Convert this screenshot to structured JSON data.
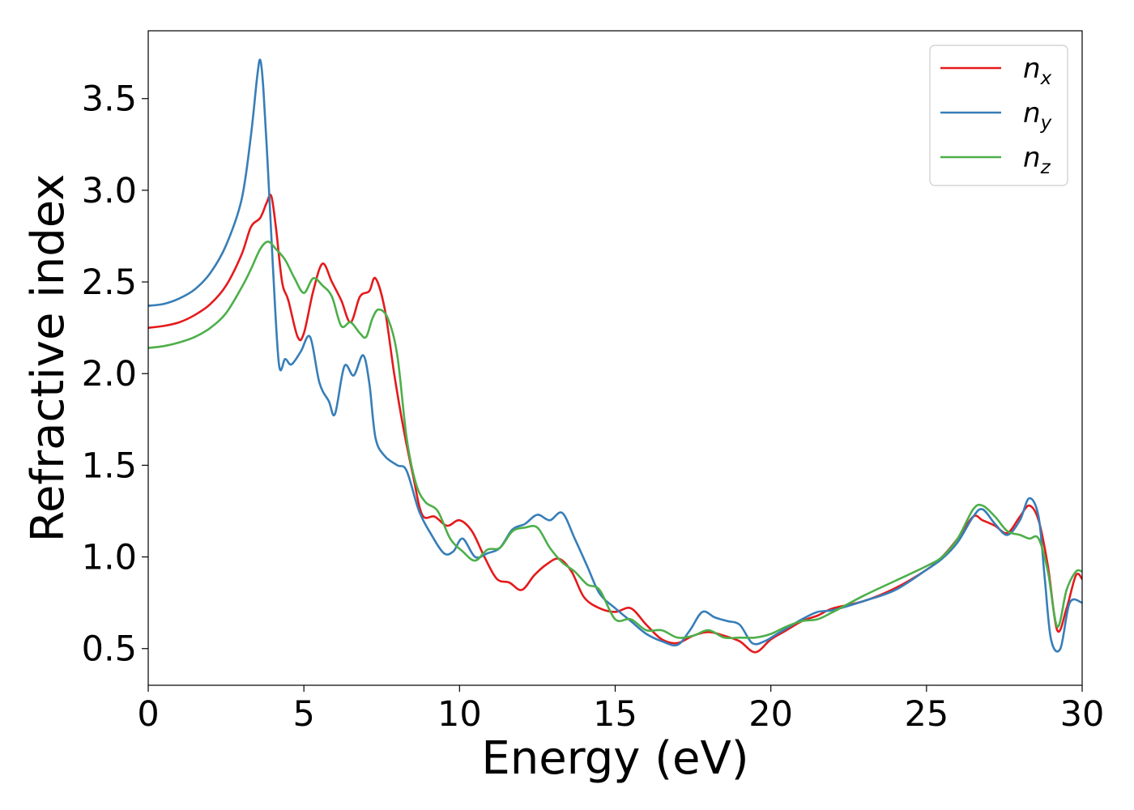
{
  "chart_data": {
    "type": "line",
    "title": "",
    "xlabel": "Energy (eV)",
    "ylabel": "Refractive index",
    "xlim": [
      0,
      30
    ],
    "ylim": [
      0.3,
      3.87
    ],
    "xticks": [
      0,
      5,
      10,
      15,
      20,
      25,
      30
    ],
    "xtick_labels": [
      "0",
      "5",
      "10",
      "15",
      "20",
      "25",
      "30"
    ],
    "yticks": [
      0.5,
      1.0,
      1.5,
      2.0,
      2.5,
      3.0,
      3.5
    ],
    "ytick_labels": [
      "0.5",
      "1.0",
      "1.5",
      "2.0",
      "2.5",
      "3.0",
      "3.5"
    ],
    "grid": false,
    "legend_position": "top-right",
    "series": [
      {
        "name": "n_x",
        "label_base": "n",
        "label_sub": "x",
        "color": "#e41a1c",
        "x": [
          0,
          0.5,
          1,
          1.5,
          2,
          2.5,
          3,
          3.3,
          3.6,
          3.8,
          3.95,
          4.1,
          4.3,
          4.5,
          4.8,
          5.0,
          5.3,
          5.6,
          5.9,
          6.2,
          6.5,
          6.8,
          7.1,
          7.3,
          7.6,
          7.9,
          8.2,
          8.5,
          8.8,
          9.2,
          9.6,
          10.0,
          10.4,
          10.8,
          11.2,
          11.6,
          12.0,
          12.4,
          12.8,
          13.2,
          13.6,
          14.0,
          14.5,
          15.0,
          15.5,
          16.0,
          16.5,
          17.0,
          17.5,
          18.0,
          18.5,
          19.0,
          19.5,
          20.0,
          20.5,
          21.0,
          21.5,
          22.0,
          23.0,
          24.0,
          25.0,
          25.5,
          26.0,
          26.5,
          26.8,
          27.2,
          27.6,
          28.0,
          28.3,
          28.6,
          28.9,
          29.2,
          29.5,
          29.8,
          30.0
        ],
        "y": [
          2.25,
          2.26,
          2.28,
          2.32,
          2.38,
          2.48,
          2.65,
          2.8,
          2.85,
          2.93,
          2.97,
          2.8,
          2.5,
          2.4,
          2.2,
          2.22,
          2.45,
          2.6,
          2.5,
          2.4,
          2.28,
          2.42,
          2.45,
          2.52,
          2.35,
          2.0,
          1.7,
          1.45,
          1.23,
          1.22,
          1.17,
          1.2,
          1.14,
          1.0,
          0.88,
          0.86,
          0.82,
          0.9,
          0.96,
          0.99,
          0.92,
          0.78,
          0.72,
          0.7,
          0.72,
          0.63,
          0.55,
          0.53,
          0.57,
          0.59,
          0.57,
          0.54,
          0.48,
          0.55,
          0.6,
          0.65,
          0.68,
          0.72,
          0.76,
          0.83,
          0.93,
          1.0,
          1.1,
          1.22,
          1.2,
          1.17,
          1.13,
          1.22,
          1.28,
          1.2,
          0.95,
          0.6,
          0.72,
          0.9,
          0.88
        ]
      },
      {
        "name": "n_y",
        "label_base": "n",
        "label_sub": "y",
        "color": "#377eb8",
        "x": [
          0,
          0.5,
          1,
          1.5,
          2,
          2.5,
          3,
          3.3,
          3.5,
          3.6,
          3.7,
          3.85,
          4.0,
          4.2,
          4.4,
          4.6,
          4.9,
          5.2,
          5.5,
          5.8,
          6.0,
          6.3,
          6.6,
          6.9,
          7.1,
          7.3,
          7.6,
          8.0,
          8.3,
          8.7,
          9.1,
          9.5,
          9.8,
          10.1,
          10.5,
          10.9,
          11.3,
          11.7,
          12.1,
          12.5,
          12.9,
          13.3,
          13.7,
          14.1,
          14.5,
          15.0,
          15.5,
          16.0,
          16.5,
          17.0,
          17.4,
          17.8,
          18.2,
          18.6,
          19.0,
          19.4,
          19.8,
          20.2,
          20.6,
          21.0,
          21.5,
          22.0,
          23.0,
          24.0,
          25.0,
          25.5,
          26.0,
          26.5,
          26.8,
          27.2,
          27.6,
          28.0,
          28.3,
          28.6,
          28.8,
          29.0,
          29.3,
          29.6,
          30.0
        ],
        "y": [
          2.37,
          2.38,
          2.41,
          2.46,
          2.55,
          2.7,
          2.95,
          3.3,
          3.62,
          3.71,
          3.55,
          3.1,
          2.6,
          2.05,
          2.08,
          2.05,
          2.12,
          2.2,
          1.95,
          1.85,
          1.78,
          2.04,
          1.99,
          2.1,
          1.95,
          1.65,
          1.55,
          1.5,
          1.47,
          1.25,
          1.12,
          1.02,
          1.03,
          1.1,
          1.0,
          1.02,
          1.05,
          1.15,
          1.18,
          1.23,
          1.2,
          1.24,
          1.1,
          0.95,
          0.8,
          0.72,
          0.65,
          0.58,
          0.54,
          0.52,
          0.6,
          0.7,
          0.67,
          0.65,
          0.63,
          0.53,
          0.54,
          0.58,
          0.62,
          0.66,
          0.7,
          0.71,
          0.76,
          0.82,
          0.93,
          0.99,
          1.08,
          1.22,
          1.26,
          1.18,
          1.12,
          1.2,
          1.32,
          1.22,
          0.88,
          0.55,
          0.5,
          0.75,
          0.75
        ]
      },
      {
        "name": "n_z",
        "label_base": "n",
        "label_sub": "z",
        "color": "#4daf4a",
        "x": [
          0,
          0.5,
          1,
          1.5,
          2,
          2.5,
          3,
          3.3,
          3.6,
          3.85,
          4.1,
          4.4,
          4.7,
          5.0,
          5.3,
          5.6,
          5.9,
          6.2,
          6.5,
          6.8,
          7.0,
          7.2,
          7.4,
          7.7,
          8.0,
          8.3,
          8.6,
          8.9,
          9.3,
          9.7,
          10.1,
          10.5,
          10.9,
          11.3,
          11.7,
          12.1,
          12.5,
          12.9,
          13.3,
          13.7,
          14.1,
          14.5,
          15.0,
          15.5,
          16.0,
          16.5,
          17.0,
          17.5,
          18.0,
          18.5,
          19.0,
          19.5,
          20.0,
          20.5,
          21.0,
          21.5,
          22.0,
          23.0,
          24.0,
          25.0,
          25.5,
          26.0,
          26.5,
          26.8,
          27.2,
          27.6,
          28.0,
          28.3,
          28.6,
          28.9,
          29.2,
          29.5,
          29.8,
          30.0
        ],
        "y": [
          2.14,
          2.15,
          2.17,
          2.2,
          2.25,
          2.33,
          2.47,
          2.57,
          2.68,
          2.72,
          2.68,
          2.62,
          2.52,
          2.44,
          2.52,
          2.48,
          2.42,
          2.26,
          2.28,
          2.22,
          2.2,
          2.3,
          2.35,
          2.3,
          2.1,
          1.65,
          1.4,
          1.3,
          1.25,
          1.1,
          1.03,
          0.98,
          1.04,
          1.05,
          1.14,
          1.16,
          1.16,
          1.05,
          0.97,
          0.92,
          0.85,
          0.82,
          0.66,
          0.66,
          0.6,
          0.6,
          0.56,
          0.57,
          0.6,
          0.56,
          0.56,
          0.56,
          0.58,
          0.62,
          0.65,
          0.66,
          0.7,
          0.79,
          0.87,
          0.95,
          1.0,
          1.1,
          1.26,
          1.28,
          1.22,
          1.14,
          1.12,
          1.1,
          1.1,
          0.92,
          0.62,
          0.82,
          0.92,
          0.92
        ]
      }
    ]
  }
}
